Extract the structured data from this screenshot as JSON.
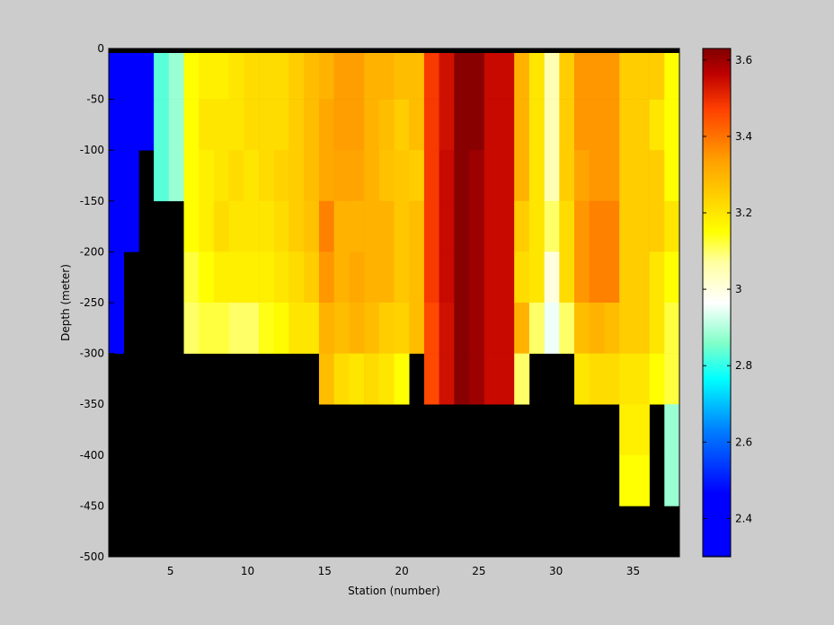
{
  "chart_data": {
    "type": "heatmap",
    "title": "",
    "xlabel": "Station (number)",
    "ylabel": "Depth (meter)",
    "xlim": [
      1,
      38
    ],
    "ylim": [
      -500,
      0
    ],
    "x_ticks": [
      5,
      10,
      15,
      20,
      25,
      30,
      35
    ],
    "y_ticks": [
      0,
      -50,
      -100,
      -150,
      -200,
      -250,
      -300,
      -350,
      -400,
      -450,
      -500
    ],
    "colorbar": {
      "colormap": "jet",
      "range": [
        2.3,
        3.63
      ],
      "ticks": [
        2.4,
        2.6,
        2.8,
        3,
        3.2,
        3.4,
        3.6
      ],
      "stops": [
        "#0000ff",
        "#00ffff",
        "#ffffff",
        "#ffff00",
        "#ff8000",
        "#800000"
      ]
    },
    "mask_color": "#000000",
    "background": "#cccccc",
    "grid": false,
    "rows_depth_bins": [
      -15,
      -50,
      -100,
      -150,
      -200,
      -250,
      -300,
      -350,
      -400
    ],
    "stations": [
      {
        "station": 1,
        "values": [
          2.33,
          2.33,
          2.33,
          2.33,
          2.33,
          2.33
        ]
      },
      {
        "station": 2,
        "values": [
          2.33,
          2.33,
          2.33,
          2.33
        ]
      },
      {
        "station": 3,
        "values": [
          2.45,
          2.45
        ]
      },
      {
        "station": 4,
        "values": [
          2.83,
          2.83,
          2.83
        ]
      },
      {
        "station": 5,
        "values": [
          2.88,
          2.88,
          2.88
        ]
      },
      {
        "station": 6,
        "values": [
          3.15,
          3.15,
          3.15,
          3.15,
          3.12,
          3.1
        ]
      },
      {
        "station": 7,
        "values": [
          3.18,
          3.2,
          3.18,
          3.18,
          3.15,
          3.12
        ]
      },
      {
        "station": 8,
        "values": [
          3.18,
          3.2,
          3.2,
          3.22,
          3.18,
          3.12
        ]
      },
      {
        "station": 9,
        "values": [
          3.2,
          3.2,
          3.22,
          3.2,
          3.18,
          3.1
        ]
      },
      {
        "station": 10,
        "values": [
          3.22,
          3.22,
          3.2,
          3.2,
          3.18,
          3.1
        ]
      },
      {
        "station": 11,
        "values": [
          3.22,
          3.22,
          3.22,
          3.2,
          3.18,
          3.14
        ]
      },
      {
        "station": 12,
        "values": [
          3.22,
          3.22,
          3.24,
          3.22,
          3.2,
          3.16
        ]
      },
      {
        "station": 13,
        "values": [
          3.25,
          3.25,
          3.25,
          3.25,
          3.22,
          3.2
        ]
      },
      {
        "station": 14,
        "values": [
          3.28,
          3.28,
          3.28,
          3.27,
          3.25,
          3.2
        ]
      },
      {
        "station": 15,
        "values": [
          3.3,
          3.32,
          3.32,
          3.38,
          3.35,
          3.3,
          3.28
        ]
      },
      {
        "station": 16,
        "values": [
          3.34,
          3.34,
          3.33,
          3.3,
          3.3,
          3.28,
          3.22
        ]
      },
      {
        "station": 17,
        "values": [
          3.34,
          3.34,
          3.33,
          3.3,
          3.32,
          3.3,
          3.2
        ]
      },
      {
        "station": 18,
        "values": [
          3.3,
          3.3,
          3.3,
          3.3,
          3.3,
          3.28,
          3.22
        ]
      },
      {
        "station": 19,
        "values": [
          3.3,
          3.28,
          3.27,
          3.3,
          3.3,
          3.25,
          3.2
        ]
      },
      {
        "station": 20,
        "values": [
          3.28,
          3.25,
          3.26,
          3.26,
          3.26,
          3.24,
          3.15
        ]
      },
      {
        "station": 21,
        "values": [
          3.28,
          3.28,
          3.25,
          3.28,
          3.28,
          3.28
        ]
      },
      {
        "station": 22,
        "values": [
          3.48,
          3.48,
          3.48,
          3.48,
          3.48,
          3.46,
          3.46
        ]
      },
      {
        "station": 23,
        "values": [
          3.54,
          3.54,
          3.55,
          3.55,
          3.55,
          3.54,
          3.54
        ]
      },
      {
        "station": 24,
        "values": [
          3.62,
          3.62,
          3.62,
          3.62,
          3.62,
          3.62,
          3.62
        ]
      },
      {
        "station": 25,
        "values": [
          3.62,
          3.62,
          3.6,
          3.6,
          3.6,
          3.6,
          3.6
        ]
      },
      {
        "station": 26,
        "values": [
          3.55,
          3.55,
          3.55,
          3.55,
          3.55,
          3.55,
          3.55
        ]
      },
      {
        "station": 27,
        "values": [
          3.55,
          3.55,
          3.55,
          3.55,
          3.55,
          3.55,
          3.55
        ]
      },
      {
        "station": 28,
        "values": [
          3.3,
          3.3,
          3.3,
          3.25,
          3.22,
          3.3,
          3.1
        ]
      },
      {
        "station": 29,
        "values": [
          3.2,
          3.2,
          3.2,
          3.2,
          3.2,
          3.1
        ]
      },
      {
        "station": 30,
        "values": [
          3.05,
          3.05,
          3.05,
          3.1,
          3.0,
          2.95
        ]
      },
      {
        "station": 31,
        "values": [
          3.25,
          3.25,
          3.25,
          3.22,
          3.22,
          3.1
        ]
      },
      {
        "station": 32,
        "values": [
          3.35,
          3.35,
          3.33,
          3.35,
          3.35,
          3.28,
          3.2
        ]
      },
      {
        "station": 33,
        "values": [
          3.35,
          3.35,
          3.35,
          3.38,
          3.38,
          3.3,
          3.22
        ]
      },
      {
        "station": 34,
        "values": [
          3.35,
          3.35,
          3.35,
          3.38,
          3.38,
          3.28,
          3.22
        ]
      },
      {
        "station": 35,
        "values": [
          3.25,
          3.25,
          3.25,
          3.25,
          3.25,
          3.25,
          3.2,
          3.18,
          3.15
        ]
      },
      {
        "station": 36,
        "values": [
          3.25,
          3.25,
          3.25,
          3.25,
          3.25,
          3.25,
          3.2,
          3.18,
          3.15
        ]
      },
      {
        "station": 37,
        "values": [
          3.25,
          3.2,
          3.25,
          3.25,
          3.2,
          3.2,
          3.15
        ]
      },
      {
        "station": 38,
        "values": [
          3.15,
          3.15,
          3.15,
          3.2,
          3.15,
          3.12,
          3.12,
          2.88,
          2.88
        ]
      }
    ]
  }
}
